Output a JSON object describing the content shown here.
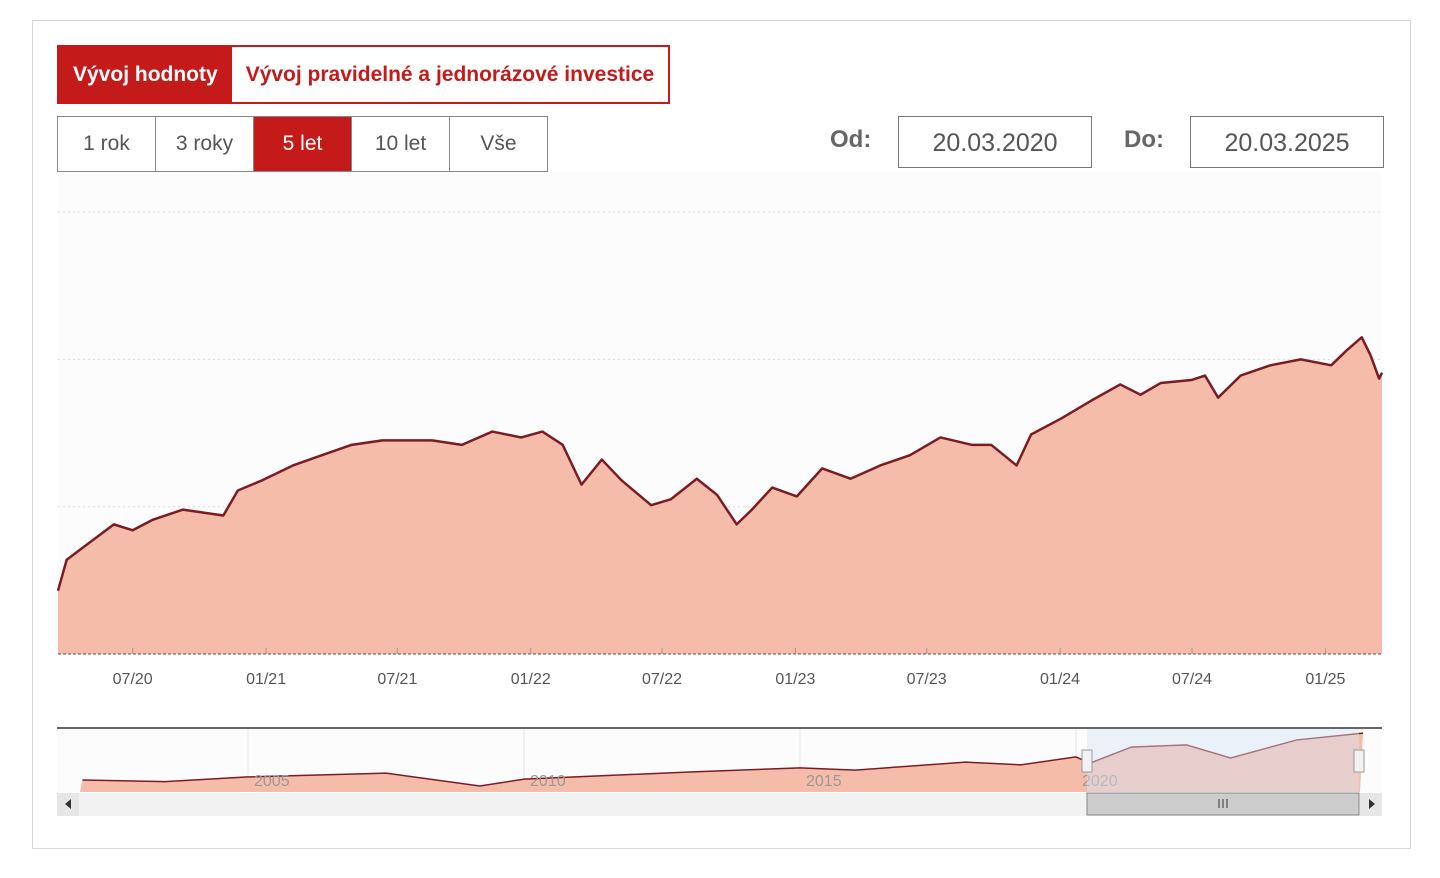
{
  "tabs": [
    {
      "label": "Vývoj hodnoty",
      "active": true
    },
    {
      "label": "Vývoj pravidelné a jednorázové investice",
      "active": false
    }
  ],
  "ranges": [
    {
      "label": "1 rok"
    },
    {
      "label": "3 roky"
    },
    {
      "label": "5 let",
      "active": true
    },
    {
      "label": "10 let"
    },
    {
      "label": "Vše"
    }
  ],
  "from": {
    "label": "Od:",
    "value": "20.03.2020"
  },
  "to": {
    "label": "Do:",
    "value": "20.03.2025"
  },
  "colors": {
    "accent": "#c41a1a",
    "line": "#7a1c24",
    "fill": "#f5bcaa",
    "navigator_mask": "#d6e4f7"
  },
  "chart_data": {
    "type": "area",
    "title": "",
    "xlabel": "",
    "ylabel": "",
    "grid": true,
    "xlim": [
      "2020-03-20",
      "2025-03-20"
    ],
    "x_ticks": [
      "07/20",
      "01/21",
      "07/21",
      "01/22",
      "07/22",
      "01/23",
      "07/23",
      "01/24",
      "07/24",
      "01/25"
    ],
    "series": [
      {
        "x": [
          "2020-03-20",
          "2020-04-01",
          "2020-04-20",
          "2020-06-05",
          "2020-07-01",
          "2020-07-28",
          "2020-09-08",
          "2020-11-03",
          "2020-11-23",
          "2020-12-27",
          "2021-02-07",
          "2021-03-19",
          "2021-04-29",
          "2021-06-10",
          "2021-07-07",
          "2021-08-18",
          "2021-09-28",
          "2021-11-09",
          "2021-12-19",
          "2022-01-17",
          "2022-02-14",
          "2022-03-12",
          "2022-04-09",
          "2022-05-06",
          "2022-06-16",
          "2022-07-13",
          "2022-08-18",
          "2022-09-15",
          "2022-10-12",
          "2022-11-02",
          "2022-11-30",
          "2023-01-03",
          "2023-02-07",
          "2023-03-18",
          "2023-04-28",
          "2023-06-08",
          "2023-07-20",
          "2023-09-01",
          "2023-09-28",
          "2023-11-02",
          "2023-11-22",
          "2024-01-03",
          "2024-02-13",
          "2024-03-24",
          "2024-04-21",
          "2024-05-19",
          "2024-06-30",
          "2024-07-19",
          "2024-08-06",
          "2024-09-06",
          "2024-10-17",
          "2024-11-28",
          "2025-01-09",
          "2025-01-30",
          "2025-02-20",
          "2025-03-04",
          "2025-03-16",
          "2025-03-20"
        ],
        "y": [
          0.43,
          0.64,
          0.71,
          0.88,
          0.84,
          0.91,
          0.98,
          0.94,
          1.11,
          1.18,
          1.28,
          1.35,
          1.42,
          1.45,
          1.45,
          1.45,
          1.42,
          1.51,
          1.47,
          1.51,
          1.42,
          1.15,
          1.32,
          1.18,
          1.01,
          1.05,
          1.19,
          1.08,
          0.88,
          0.98,
          1.13,
          1.07,
          1.26,
          1.19,
          1.28,
          1.35,
          1.47,
          1.42,
          1.42,
          1.28,
          1.49,
          1.6,
          1.72,
          1.83,
          1.76,
          1.84,
          1.86,
          1.89,
          1.74,
          1.89,
          1.96,
          2.0,
          1.96,
          2.06,
          2.15,
          2.03,
          1.87,
          1.91
        ]
      }
    ],
    "navigator": {
      "x_ticks": [
        "2005",
        "2010",
        "2015",
        "2020"
      ],
      "x": [
        2002.0,
        2003.5,
        2005.0,
        2007.5,
        2009.2,
        2010.0,
        2013.0,
        2015.0,
        2016.0,
        2018.0,
        2019.0,
        2020.0,
        2020.25,
        2021.0,
        2022.0,
        2022.8,
        2024.0,
        2025.2
      ],
      "y": [
        0.44,
        0.38,
        0.55,
        0.69,
        0.22,
        0.47,
        0.73,
        0.88,
        0.8,
        1.09,
        0.99,
        1.28,
        1.05,
        1.64,
        1.72,
        1.24,
        1.9,
        2.15
      ],
      "selected": [
        "2020-03-20",
        "2025-03-20"
      ]
    }
  }
}
